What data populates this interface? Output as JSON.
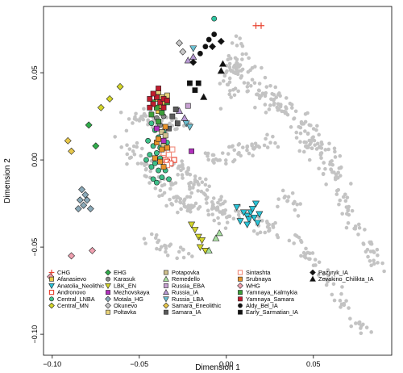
{
  "chart_data": {
    "type": "scatter",
    "xlabel": "Dimension 1",
    "ylabel": "Dimension 2",
    "xlim": [
      -0.105,
      0.095
    ],
    "ylim": [
      -0.112,
      0.088
    ],
    "x_ticks": [
      -0.1,
      -0.05,
      0.0,
      0.05
    ],
    "x_tick_labels": [
      "−0.10",
      "−0.05",
      "0.00",
      "0.05"
    ],
    "y_ticks": [
      -0.1,
      -0.05,
      0.0,
      0.05
    ],
    "y_tick_labels": [
      "−0.10",
      "−0.05",
      "0.00",
      "0.05"
    ],
    "grid": false,
    "legend_position": "bottom-left",
    "background_points": {
      "name": "",
      "color": "#c3c3c3",
      "count": 600,
      "note_ranges": "estimated"
    },
    "series": [
      {
        "name": "CHG",
        "marker": "plus",
        "color": "#e8412e",
        "points": [
          [
            0.017,
            0.077
          ],
          [
            0.02,
            0.077
          ]
        ]
      },
      {
        "name": "Afanasievo",
        "marker": "square",
        "color": "#e8c84a",
        "points": [
          [
            -0.04,
            0.035
          ],
          [
            -0.038,
            0.031
          ],
          [
            -0.036,
            0.033
          ],
          [
            -0.039,
            0.028
          ]
        ]
      },
      {
        "name": "Anatolia_Neolithic",
        "marker": "triangle-down",
        "color": "#29c3d6",
        "points": [
          [
            0.008,
            -0.035
          ],
          [
            0.012,
            -0.032
          ],
          [
            0.014,
            -0.03
          ],
          [
            0.016,
            -0.033
          ],
          [
            0.018,
            -0.036
          ],
          [
            0.015,
            -0.028
          ],
          [
            0.01,
            -0.03
          ],
          [
            0.013,
            -0.034
          ],
          [
            0.019,
            -0.031
          ],
          [
            0.006,
            -0.027
          ],
          [
            0.012,
            -0.037
          ],
          [
            0.017,
            -0.025
          ]
        ]
      },
      {
        "name": "Andronovo",
        "marker": "square-open",
        "color": "#e8412e",
        "points": [
          [
            -0.036,
            0.002
          ],
          [
            -0.035,
            0.0
          ],
          [
            -0.034,
            -0.001
          ],
          [
            -0.03,
            0.0
          ],
          [
            -0.032,
            -0.002
          ]
        ]
      },
      {
        "name": "Central_LNBA",
        "marker": "circle",
        "color": "#3dbf88",
        "points": [
          [
            -0.043,
            0.021
          ],
          [
            -0.041,
            0.017
          ],
          [
            -0.039,
            0.013
          ],
          [
            -0.042,
            0.008
          ],
          [
            -0.04,
            0.004
          ],
          [
            -0.038,
            0.001
          ],
          [
            -0.041,
            -0.002
          ],
          [
            -0.039,
            -0.006
          ],
          [
            -0.037,
            -0.01
          ],
          [
            -0.043,
            -0.004
          ],
          [
            -0.045,
            0.011
          ],
          [
            -0.044,
            0.003
          ],
          [
            -0.035,
            -0.006
          ],
          [
            -0.033,
            -0.011
          ],
          [
            -0.042,
            -0.011
          ],
          [
            -0.036,
            0.016
          ],
          [
            -0.038,
            0.007
          ],
          [
            -0.04,
            -0.013
          ],
          [
            -0.034,
            0.01
          ],
          [
            -0.046,
            0.0
          ]
        ]
      },
      {
        "name": "Central_MN",
        "marker": "diamond",
        "color": "#d4d62a",
        "points": [
          [
            -0.072,
            0.03
          ],
          [
            -0.067,
            0.035
          ],
          [
            -0.061,
            0.042
          ]
        ]
      },
      {
        "name": "EHG",
        "marker": "diamond",
        "color": "#2fad4a",
        "points": [
          [
            -0.079,
            0.02
          ],
          [
            -0.075,
            0.008
          ]
        ]
      },
      {
        "name": "Karasuk",
        "marker": "circle",
        "color": "#8a8a8a",
        "points": [
          [
            -0.04,
            0.024
          ],
          [
            -0.038,
            0.02
          ],
          [
            -0.036,
            0.025
          ]
        ]
      },
      {
        "name": "LBK_EN",
        "marker": "triangle-down",
        "color": "#d4d62a",
        "points": [
          [
            -0.02,
            -0.037
          ],
          [
            -0.018,
            -0.04
          ],
          [
            -0.016,
            -0.044
          ],
          [
            -0.014,
            -0.046
          ],
          [
            -0.012,
            -0.052
          ],
          [
            -0.015,
            -0.05
          ]
        ]
      },
      {
        "name": "Mezhovskaya",
        "marker": "square",
        "color": "#b12fbd",
        "points": [
          [
            -0.04,
            0.018
          ],
          [
            -0.036,
            0.011
          ],
          [
            -0.02,
            0.005
          ]
        ]
      },
      {
        "name": "Motala_HG",
        "marker": "diamond",
        "color": "#8aa9b8",
        "points": [
          [
            -0.083,
            -0.017
          ],
          [
            -0.081,
            -0.02
          ],
          [
            -0.084,
            -0.023
          ],
          [
            -0.082,
            -0.026
          ],
          [
            -0.085,
            -0.028
          ],
          [
            -0.08,
            -0.023
          ],
          [
            -0.078,
            -0.028
          ]
        ]
      },
      {
        "name": "Okunevo",
        "marker": "diamond",
        "color": "#c8c8c8",
        "points": [
          [
            -0.027,
            0.067
          ],
          [
            -0.025,
            0.062
          ]
        ]
      },
      {
        "name": "Poltavka",
        "marker": "square",
        "color": "#e8d27a",
        "points": [
          [
            -0.039,
            0.039
          ],
          [
            -0.037,
            0.036
          ],
          [
            -0.034,
            0.037
          ]
        ]
      },
      {
        "name": "Potapovka",
        "marker": "square",
        "color": "#d1c28e",
        "points": [
          [
            -0.037,
            0.016
          ],
          [
            -0.035,
            0.014
          ],
          [
            -0.036,
            0.008
          ]
        ]
      },
      {
        "name": "Remedello",
        "marker": "triangle",
        "color": "#a8e0a0",
        "points": [
          [
            -0.006,
            -0.045
          ],
          [
            -0.004,
            -0.042
          ],
          [
            -0.01,
            -0.052
          ]
        ]
      },
      {
        "name": "Russia_EBA",
        "marker": "square",
        "color": "#c8a2d2",
        "points": [
          [
            -0.022,
            0.031
          ]
        ]
      },
      {
        "name": "Russia_IA",
        "marker": "triangle",
        "color": "#b89ad4",
        "points": [
          [
            -0.022,
            0.057
          ],
          [
            -0.019,
            0.059
          ],
          [
            -0.027,
            0.028
          ],
          [
            -0.024,
            0.024
          ]
        ]
      },
      {
        "name": "Russia_LBA",
        "marker": "triangle-down",
        "color": "#6abfd1",
        "points": [
          [
            -0.019,
            0.064
          ],
          [
            -0.023,
            0.021
          ],
          [
            -0.021,
            0.019
          ]
        ]
      },
      {
        "name": "Samara_Eneolithic",
        "marker": "diamond",
        "color": "#e8c84a",
        "points": [
          [
            -0.091,
            0.011
          ],
          [
            -0.089,
            0.005
          ]
        ]
      },
      {
        "name": "Samara_IA",
        "marker": "square",
        "color": "#5a5a5a",
        "points": [
          [
            -0.029,
            0.029
          ],
          [
            -0.031,
            0.025
          ],
          [
            -0.033,
            0.018
          ],
          [
            -0.028,
            0.021
          ]
        ]
      },
      {
        "name": "Sintashta",
        "marker": "square-open",
        "color": "#f08a7a",
        "points": [
          [
            -0.036,
            0.004
          ],
          [
            -0.033,
            0.003
          ],
          [
            -0.031,
            0.006
          ],
          [
            -0.034,
            -0.003
          ]
        ]
      },
      {
        "name": "Srubnaya",
        "marker": "square",
        "color": "#e8932a",
        "points": [
          [
            -0.04,
            0.01
          ],
          [
            -0.037,
            0.006
          ],
          [
            -0.034,
            0.007
          ],
          [
            -0.038,
            -0.001
          ],
          [
            -0.036,
            -0.004
          ],
          [
            -0.041,
            0.001
          ],
          [
            -0.039,
            0.012
          ],
          [
            -0.035,
            0.019
          ]
        ]
      },
      {
        "name": "WHG",
        "marker": "diamond",
        "color": "#f0a0b0",
        "points": [
          [
            -0.101,
            -0.067
          ],
          [
            -0.089,
            -0.055
          ],
          [
            -0.077,
            -0.052
          ]
        ]
      },
      {
        "name": "Yamnaya_Kalmykia",
        "marker": "square",
        "color": "#3c9f3a",
        "points": [
          [
            -0.04,
            0.03
          ],
          [
            -0.043,
            0.026
          ],
          [
            -0.039,
            0.022
          ],
          [
            -0.037,
            0.027
          ],
          [
            -0.042,
            0.033
          ],
          [
            -0.034,
            0.033
          ]
        ]
      },
      {
        "name": "Yamnaya_Samara",
        "marker": "square",
        "color": "#c21c2e",
        "points": [
          [
            -0.044,
            0.035
          ],
          [
            -0.042,
            0.032
          ],
          [
            -0.04,
            0.036
          ],
          [
            -0.038,
            0.033
          ],
          [
            -0.036,
            0.035
          ],
          [
            -0.042,
            0.038
          ],
          [
            -0.044,
            0.03
          ],
          [
            -0.036,
            0.03
          ],
          [
            -0.034,
            0.034
          ],
          [
            -0.039,
            0.041
          ]
        ]
      },
      {
        "name": "Aldy_Bel_IA",
        "marker": "circle",
        "color": "#111111",
        "points": [
          [
            -0.012,
            0.065
          ],
          [
            -0.01,
            0.069
          ],
          [
            -0.015,
            0.061
          ],
          [
            -0.007,
            0.072
          ]
        ]
      },
      {
        "name": "Early_Sarmatian_IA",
        "marker": "square",
        "color": "#111111",
        "points": [
          [
            -0.021,
            0.044
          ],
          [
            -0.018,
            0.04
          ],
          [
            -0.016,
            0.044
          ]
        ]
      },
      {
        "name": "Pazyryk_IA",
        "marker": "diamond",
        "color": "#111111",
        "points": [
          [
            -0.008,
            0.065
          ],
          [
            -0.003,
            0.068
          ],
          [
            -0.019,
            0.056
          ]
        ]
      },
      {
        "name": "Zevakino_Chilikta_IA",
        "marker": "triangle",
        "color": "#111111",
        "points": [
          [
            -0.003,
            0.051
          ],
          [
            -0.013,
            0.036
          ],
          [
            -0.002,
            0.055
          ]
        ]
      },
      {
        "name": "",
        "marker": "circle",
        "color": "#2ec4a0",
        "points": [
          [
            -0.007,
            0.081
          ]
        ]
      }
    ]
  }
}
